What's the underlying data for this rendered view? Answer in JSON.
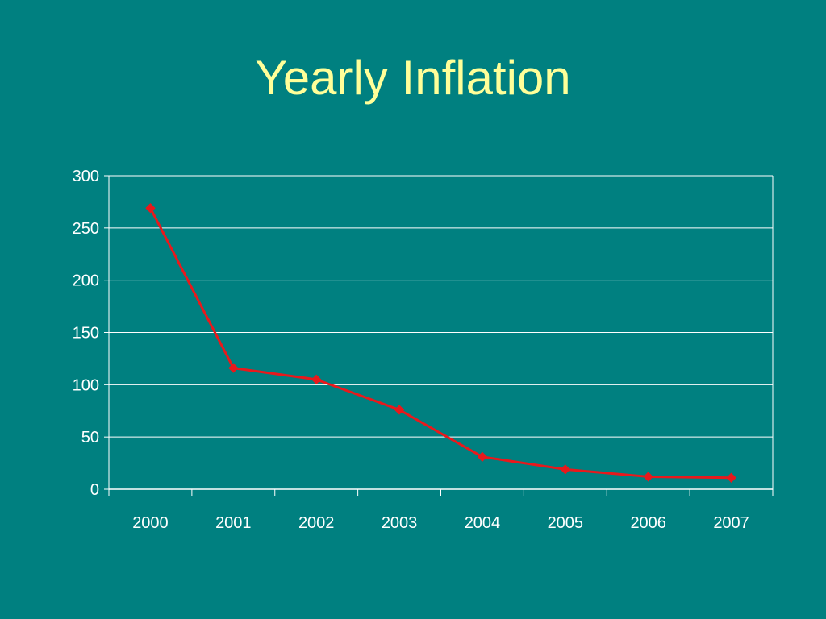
{
  "slide": {
    "background": "#008080",
    "title_color": "#FFFF99"
  },
  "chart_data": {
    "type": "line",
    "title": "Yearly Inflation",
    "xlabel": "",
    "ylabel": "",
    "categories": [
      "2000",
      "2001",
      "2002",
      "2003",
      "2004",
      "2005",
      "2006",
      "2007"
    ],
    "series": [
      {
        "values": [
          269,
          116,
          105,
          76,
          31,
          19,
          12,
          11
        ],
        "color": "#E8191C",
        "marker": "diamond"
      }
    ],
    "ylim": [
      0,
      300
    ],
    "yticks": [
      0,
      50,
      100,
      150,
      200,
      250,
      300
    ],
    "grid": true,
    "grid_color": "#FFFFFF",
    "legend": "none"
  }
}
